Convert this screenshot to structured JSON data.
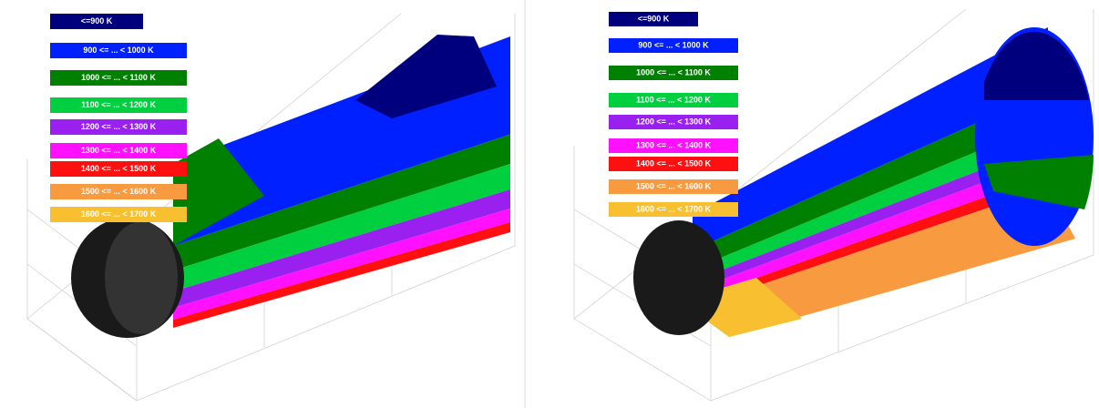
{
  "panels": [
    {
      "legend": [
        {
          "label": "<=900 K",
          "color": "#00007f"
        },
        {
          "label": "900 <= ... < 1000 K",
          "color": "#0020ff"
        },
        {
          "label": "1000 <= ... < 1100 K",
          "color": "#008000"
        },
        {
          "label": "1100 <= ... < 1200 K",
          "color": "#00d040"
        },
        {
          "label": "1200 <= ... < 1300 K",
          "color": "#9a20f0"
        },
        {
          "label": "1300 <= ... < 1400 K",
          "color": "#ff10ff"
        },
        {
          "label": "1400 <= ... < 1500 K",
          "color": "#ff1010"
        },
        {
          "label": "1500 <= ... < 1600 K",
          "color": "#f89a40"
        },
        {
          "label": "1600 <= ... < 1700 K",
          "color": "#f8c030"
        }
      ]
    },
    {
      "legend": [
        {
          "label": "<=900 K",
          "color": "#00007f"
        },
        {
          "label": "900 <= ... < 1000 K",
          "color": "#0020ff"
        },
        {
          "label": "1000 <= ... < 1100 K",
          "color": "#008000"
        },
        {
          "label": "1100 <= ... < 1200 K",
          "color": "#00d040"
        },
        {
          "label": "1200 <= ... < 1300 K",
          "color": "#9a20f0"
        },
        {
          "label": "1300 <= ... < 1400 K",
          "color": "#ff10ff"
        },
        {
          "label": "1400 <= ... < 1500 K",
          "color": "#ff1010"
        },
        {
          "label": "1500 <= ... < 1600 K",
          "color": "#f89a40"
        },
        {
          "label": "1600 <= ... < 1700 K",
          "color": "#f8c030"
        }
      ]
    }
  ]
}
